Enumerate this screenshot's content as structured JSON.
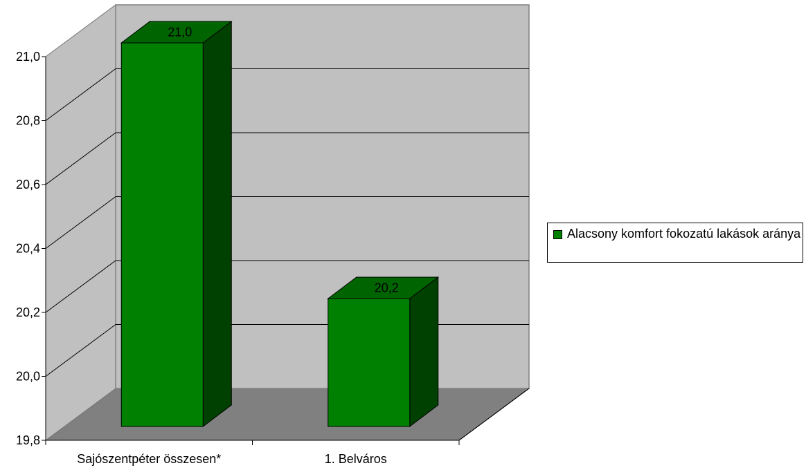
{
  "chart_data": {
    "type": "bar",
    "categories": [
      "Sajószentpéter összesen*",
      "1. Belváros"
    ],
    "series": [
      {
        "name": "Alacsony komfort fokozatú lakások aránya",
        "values": [
          21.0,
          20.2
        ],
        "labels": [
          "21,0",
          "20,2"
        ]
      }
    ],
    "ylim": [
      19.8,
      21.0
    ],
    "yticks": [
      "19,8",
      "20,0",
      "20,2",
      "20,4",
      "20,6",
      "20,8",
      "21,0"
    ],
    "grid": true,
    "legend_position": "right",
    "three_d": true
  },
  "colors": {
    "bar_front": "#008000",
    "bar_top": "#006400",
    "bar_side": "#004000",
    "back_wall": "#c0c0c0",
    "side_wall": "#c0c0c0",
    "floor": "#808080",
    "grid": "#000000"
  }
}
